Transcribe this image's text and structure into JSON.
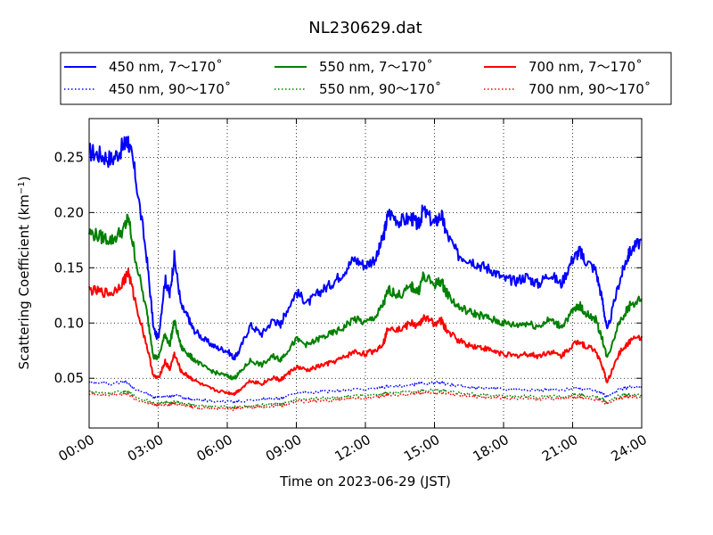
{
  "chart_data": {
    "type": "line",
    "title": "NL230629.dat",
    "xlabel": "Time on 2023-06-29 (JST)",
    "ylabel_main": "Scattering Coefficient (km",
    "ylabel_sup": "−1",
    "ylabel_end": ")",
    "xlim": [
      0,
      24
    ],
    "ylim": [
      0.005,
      0.285
    ],
    "grid": true,
    "legend_position": "top",
    "x_ticks": [
      {
        "value": 0,
        "label": "00:00"
      },
      {
        "value": 3,
        "label": "03:00"
      },
      {
        "value": 6,
        "label": "06:00"
      },
      {
        "value": 9,
        "label": "09:00"
      },
      {
        "value": 12,
        "label": "12:00"
      },
      {
        "value": 15,
        "label": "15:00"
      },
      {
        "value": 18,
        "label": "18:00"
      },
      {
        "value": 21,
        "label": "21:00"
      },
      {
        "value": 24,
        "label": "24:00"
      }
    ],
    "y_ticks": [
      {
        "value": 0.05,
        "label": "0.05"
      },
      {
        "value": 0.1,
        "label": "0.10"
      },
      {
        "value": 0.15,
        "label": "0.15"
      },
      {
        "value": 0.2,
        "label": "0.20"
      },
      {
        "value": 0.25,
        "label": "0.25"
      }
    ],
    "x": [
      0,
      0.5,
      1,
      1.5,
      1.7,
      2,
      2.5,
      2.8,
      3,
      3.3,
      3.5,
      3.7,
      4,
      4.3,
      4.5,
      5,
      5.5,
      6,
      6.3,
      6.5,
      7,
      7.5,
      8,
      8.3,
      8.5,
      9,
      9.5,
      10,
      10.5,
      11,
      11.5,
      12,
      12.5,
      12.8,
      13,
      13.5,
      14,
      14.3,
      14.5,
      15,
      15.3,
      15.5,
      16,
      16.5,
      17,
      17.5,
      18,
      18.5,
      19,
      19.5,
      20,
      20.5,
      21,
      21.3,
      21.5,
      22,
      22.3,
      22.5,
      23,
      23.3,
      23.5,
      24
    ],
    "series": [
      {
        "name": "450 nm, 7～170˚",
        "color": "#0000ff",
        "style": "solid",
        "width": 2,
        "values": [
          0.255,
          0.252,
          0.248,
          0.26,
          0.265,
          0.235,
          0.16,
          0.095,
          0.085,
          0.14,
          0.125,
          0.16,
          0.115,
          0.105,
          0.095,
          0.085,
          0.078,
          0.075,
          0.068,
          0.074,
          0.098,
          0.09,
          0.103,
          0.098,
          0.108,
          0.128,
          0.118,
          0.128,
          0.135,
          0.145,
          0.158,
          0.152,
          0.16,
          0.18,
          0.2,
          0.192,
          0.195,
          0.188,
          0.202,
          0.19,
          0.198,
          0.182,
          0.162,
          0.158,
          0.152,
          0.148,
          0.14,
          0.138,
          0.142,
          0.135,
          0.145,
          0.135,
          0.158,
          0.165,
          0.158,
          0.148,
          0.12,
          0.092,
          0.135,
          0.155,
          0.165,
          0.175
        ]
      },
      {
        "name": "450 nm, 90～170˚",
        "color": "#0000ff",
        "style": "dotted",
        "width": 1.5,
        "values": [
          0.047,
          0.046,
          0.045,
          0.047,
          0.046,
          0.04,
          0.036,
          0.033,
          0.033,
          0.034,
          0.034,
          0.035,
          0.033,
          0.032,
          0.031,
          0.03,
          0.029,
          0.029,
          0.029,
          0.029,
          0.03,
          0.031,
          0.032,
          0.032,
          0.033,
          0.037,
          0.037,
          0.038,
          0.038,
          0.039,
          0.04,
          0.04,
          0.041,
          0.042,
          0.043,
          0.043,
          0.044,
          0.045,
          0.045,
          0.046,
          0.046,
          0.045,
          0.043,
          0.042,
          0.041,
          0.041,
          0.04,
          0.04,
          0.04,
          0.039,
          0.04,
          0.039,
          0.041,
          0.041,
          0.04,
          0.039,
          0.036,
          0.033,
          0.04,
          0.041,
          0.042,
          0.042
        ]
      },
      {
        "name": "550 nm, 7～170˚",
        "color": "#008000",
        "style": "solid",
        "width": 2,
        "values": [
          0.182,
          0.178,
          0.175,
          0.185,
          0.195,
          0.16,
          0.11,
          0.07,
          0.068,
          0.09,
          0.08,
          0.102,
          0.078,
          0.072,
          0.068,
          0.06,
          0.055,
          0.052,
          0.05,
          0.054,
          0.066,
          0.062,
          0.07,
          0.067,
          0.072,
          0.085,
          0.08,
          0.086,
          0.09,
          0.095,
          0.104,
          0.1,
          0.107,
          0.118,
          0.13,
          0.125,
          0.133,
          0.128,
          0.142,
          0.135,
          0.138,
          0.128,
          0.115,
          0.11,
          0.107,
          0.103,
          0.1,
          0.098,
          0.1,
          0.097,
          0.103,
          0.097,
          0.11,
          0.116,
          0.11,
          0.103,
          0.085,
          0.068,
          0.1,
          0.11,
          0.116,
          0.122
        ]
      },
      {
        "name": "550 nm, 90～170˚",
        "color": "#008000",
        "style": "dotted",
        "width": 1.5,
        "values": [
          0.038,
          0.037,
          0.037,
          0.038,
          0.038,
          0.033,
          0.03,
          0.027,
          0.027,
          0.028,
          0.028,
          0.029,
          0.027,
          0.027,
          0.026,
          0.025,
          0.024,
          0.024,
          0.024,
          0.024,
          0.025,
          0.026,
          0.027,
          0.027,
          0.027,
          0.031,
          0.031,
          0.032,
          0.032,
          0.033,
          0.034,
          0.034,
          0.035,
          0.036,
          0.037,
          0.037,
          0.038,
          0.038,
          0.039,
          0.039,
          0.039,
          0.038,
          0.037,
          0.036,
          0.035,
          0.035,
          0.034,
          0.034,
          0.034,
          0.033,
          0.034,
          0.033,
          0.035,
          0.035,
          0.034,
          0.033,
          0.031,
          0.028,
          0.034,
          0.035,
          0.035,
          0.035
        ]
      },
      {
        "name": "700 nm, 7～170˚",
        "color": "#ff0000",
        "style": "solid",
        "width": 2,
        "values": [
          0.13,
          0.128,
          0.127,
          0.138,
          0.146,
          0.12,
          0.08,
          0.052,
          0.05,
          0.065,
          0.058,
          0.072,
          0.056,
          0.052,
          0.049,
          0.043,
          0.039,
          0.037,
          0.036,
          0.039,
          0.048,
          0.045,
          0.051,
          0.048,
          0.052,
          0.06,
          0.057,
          0.061,
          0.064,
          0.068,
          0.074,
          0.072,
          0.076,
          0.083,
          0.097,
          0.094,
          0.1,
          0.097,
          0.105,
          0.1,
          0.102,
          0.094,
          0.085,
          0.08,
          0.078,
          0.075,
          0.072,
          0.07,
          0.072,
          0.07,
          0.074,
          0.07,
          0.08,
          0.084,
          0.08,
          0.075,
          0.06,
          0.046,
          0.072,
          0.08,
          0.084,
          0.088
        ]
      },
      {
        "name": "700 nm, 90～170˚",
        "color": "#ff0000",
        "style": "dotted",
        "width": 1.5,
        "values": [
          0.036,
          0.035,
          0.035,
          0.036,
          0.036,
          0.031,
          0.028,
          0.026,
          0.026,
          0.026,
          0.026,
          0.027,
          0.026,
          0.025,
          0.024,
          0.023,
          0.023,
          0.022,
          0.022,
          0.023,
          0.024,
          0.024,
          0.025,
          0.025,
          0.026,
          0.029,
          0.029,
          0.03,
          0.03,
          0.031,
          0.032,
          0.032,
          0.033,
          0.034,
          0.035,
          0.035,
          0.036,
          0.036,
          0.037,
          0.037,
          0.037,
          0.036,
          0.035,
          0.034,
          0.033,
          0.033,
          0.032,
          0.032,
          0.032,
          0.031,
          0.032,
          0.031,
          0.033,
          0.033,
          0.032,
          0.031,
          0.029,
          0.027,
          0.032,
          0.033,
          0.033,
          0.033
        ]
      }
    ]
  }
}
